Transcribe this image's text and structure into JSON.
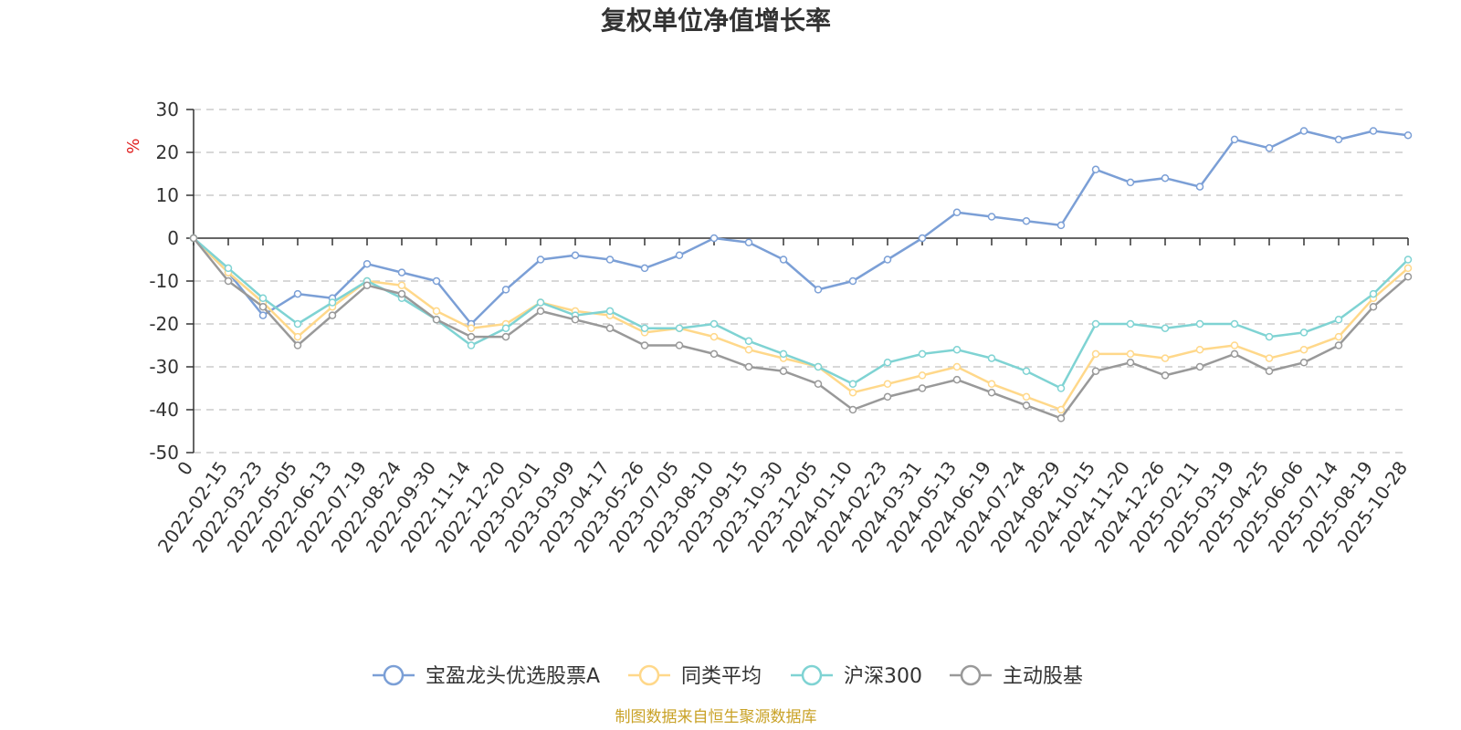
{
  "chart_data": {
    "type": "line",
    "title": "复权单位净值增长率",
    "ylabel": "%",
    "ylim": [
      -50,
      30
    ],
    "yticks": [
      "30",
      "20",
      "10",
      "0",
      "-10",
      "-20",
      "-30",
      "-40",
      "-50"
    ],
    "yticks_values": [
      30,
      20,
      10,
      0,
      -10,
      -20,
      -30,
      -40,
      -50
    ],
    "grid": true,
    "legend_position": "bottom",
    "x_labels": [
      "0",
      "2022-02-15",
      "2022-03-23",
      "2022-05-05",
      "2022-06-13",
      "2022-07-19",
      "2022-08-24",
      "2022-09-30",
      "2022-11-14",
      "2022-12-20",
      "2023-02-01",
      "2023-03-09",
      "2023-04-17",
      "2023-05-26",
      "2023-07-05",
      "2023-08-10",
      "2023-09-15",
      "2023-10-30",
      "2023-12-05",
      "2024-01-10",
      "2024-02-23",
      "2024-03-31",
      "2024-05-13",
      "2024-06-19",
      "2024-07-24",
      "2024-08-29",
      "2024-10-15",
      "2024-11-20",
      "2024-12-26",
      "2025-02-11",
      "2025-03-19",
      "2025-04-25",
      "2025-06-06",
      "2025-07-14",
      "2025-08-19",
      "2025-10-28"
    ],
    "series": [
      {
        "name": "宝盈龙头优选股票A",
        "color": "#7b9fd6",
        "values": [
          0,
          -8,
          -18,
          -13,
          -14,
          -6,
          -8,
          -10,
          -20,
          -12,
          -5,
          -4,
          -5,
          -7,
          -4,
          0,
          -1,
          -5,
          -12,
          -10,
          -5,
          0,
          6,
          5,
          4,
          3,
          16,
          13,
          14,
          12,
          23,
          21,
          25,
          23,
          25,
          24
        ]
      },
      {
        "name": "同类平均",
        "color": "#ffd88a",
        "values": [
          0,
          -8,
          -15,
          -23,
          -16,
          -10,
          -11,
          -17,
          -21,
          -20,
          -15,
          -17,
          -18,
          -22,
          -21,
          -23,
          -26,
          -28,
          -30,
          -36,
          -34,
          -32,
          -30,
          -34,
          -37,
          -40,
          -27,
          -27,
          -28,
          -26,
          -25,
          -28,
          -26,
          -23,
          -14,
          -7
        ]
      },
      {
        "name": "沪深300",
        "color": "#7fd3d3",
        "values": [
          0,
          -7,
          -14,
          -20,
          -15,
          -10,
          -14,
          -19,
          -25,
          -21,
          -15,
          -18,
          -17,
          -21,
          -21,
          -20,
          -24,
          -27,
          -30,
          -34,
          -29,
          -27,
          -26,
          -28,
          -31,
          -35,
          -20,
          -20,
          -21,
          -20,
          -20,
          -23,
          -22,
          -19,
          -13,
          -5
        ]
      },
      {
        "name": "主动股基",
        "color": "#999999",
        "values": [
          0,
          -10,
          -16,
          -25,
          -18,
          -11,
          -13,
          -19,
          -23,
          -23,
          -17,
          -19,
          -21,
          -25,
          -25,
          -27,
          -30,
          -31,
          -34,
          -40,
          -37,
          -35,
          -33,
          -36,
          -39,
          -42,
          -31,
          -29,
          -32,
          -30,
          -27,
          -31,
          -29,
          -25,
          -16,
          -9
        ]
      }
    ]
  },
  "footer": {
    "source": "制图数据来自恒生聚源数据库"
  }
}
